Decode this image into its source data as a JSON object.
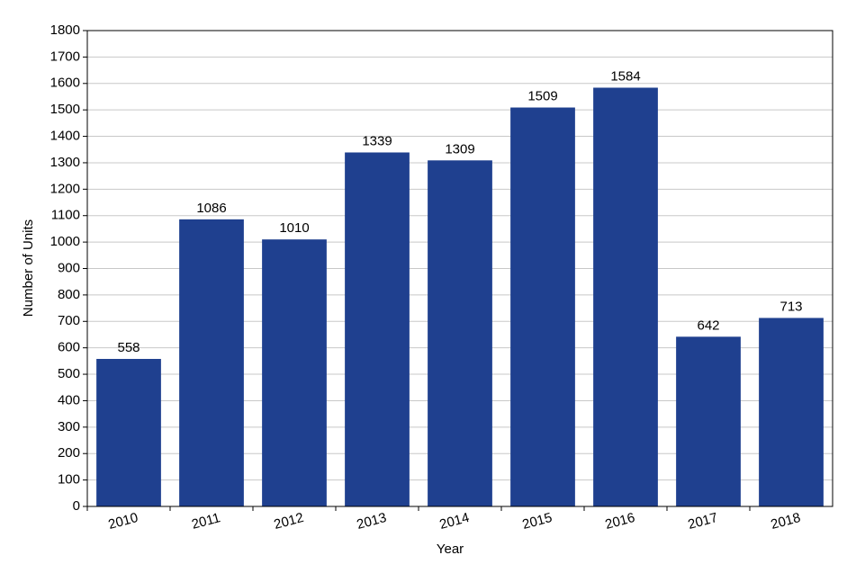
{
  "chart_data": {
    "type": "bar",
    "x_label": "Year",
    "y_label": "Number of Units",
    "categories": [
      "2010",
      "2011",
      "2012",
      "2013",
      "2014",
      "2015",
      "2016",
      "2017",
      "2018"
    ],
    "values": [
      558,
      1086,
      1010,
      1339,
      1309,
      1509,
      1584,
      642,
      713
    ],
    "color": "#1f408f",
    "ylim": [
      0,
      1800
    ],
    "yticks": [
      0,
      100,
      200,
      300,
      400,
      500,
      600,
      700,
      800,
      900,
      1000,
      1100,
      1200,
      1300,
      1400,
      1500,
      1600,
      1700,
      1800
    ],
    "grid": true
  }
}
